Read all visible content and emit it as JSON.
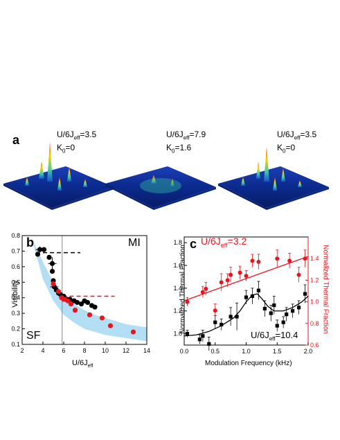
{
  "panel_a": {
    "label": "a",
    "surfaces": [
      {
        "param_main": "U/6J",
        "param_sub": "eff",
        "param_value": "=3.5",
        "k_main": "K",
        "k_sub": "0",
        "k_value": "=0"
      },
      {
        "param_main": "U/6J",
        "param_sub": "eff",
        "param_value": "=7.9",
        "k_main": "K",
        "k_sub": "0",
        "k_value": "=1.6"
      },
      {
        "param_main": "U/6J",
        "param_sub": "eff",
        "param_value": "=3.5",
        "k_main": "K",
        "k_sub": "0",
        "k_value": "=0"
      }
    ]
  },
  "panel_b": {
    "label": "b",
    "region_left": "SF",
    "region_right": "MI",
    "colors": {
      "black": "#000000",
      "red": "#e8141e",
      "band": "#b3dff5",
      "vline": "#888888"
    }
  },
  "panel_c": {
    "label": "c",
    "red_annotation": {
      "main": "U/6J",
      "sub": "eff",
      "value": "=3.2"
    },
    "black_annotation": {
      "main": "U/6J",
      "sub": "eff",
      "value": "=10.4"
    },
    "colors": {
      "black": "#000000",
      "red": "#e8141e"
    }
  },
  "chart_data": [
    {
      "type": "scatter",
      "xlabel_main": "U/6J",
      "xlabel_sub": "eff",
      "ylabel": "Visibility",
      "xlim": [
        2,
        14
      ],
      "ylim": [
        0.1,
        0.8
      ],
      "xticks": [
        "2",
        "4",
        "6",
        "8",
        "10",
        "12",
        "14"
      ],
      "yticks": [
        "0.1",
        "0.2",
        "0.3",
        "0.4",
        "0.5",
        "0.6",
        "0.7",
        "0.8"
      ],
      "series": [
        {
          "color": "black",
          "points": [
            [
              3.5,
              0.68
            ],
            [
              3.7,
              0.71
            ],
            [
              4.1,
              0.71
            ],
            [
              4.6,
              0.66
            ],
            [
              4.9,
              0.62
            ],
            [
              4.9,
              0.57
            ],
            [
              5.0,
              0.51
            ],
            [
              5.1,
              0.47
            ],
            [
              5.3,
              0.45
            ],
            [
              5.5,
              0.43
            ],
            [
              5.7,
              0.42
            ],
            [
              6.0,
              0.41
            ],
            [
              6.3,
              0.39
            ],
            [
              6.6,
              0.39
            ],
            [
              7.0,
              0.38
            ],
            [
              7.3,
              0.37
            ],
            [
              7.7,
              0.36
            ],
            [
              8.0,
              0.38
            ],
            [
              8.3,
              0.37
            ],
            [
              8.7,
              0.35
            ],
            [
              9.0,
              0.34
            ]
          ],
          "errorbars": [
            [
              3.7,
              0.71,
              0.02
            ],
            [
              4.9,
              0.62,
              0.04
            ],
            [
              5.1,
              0.47,
              0.03
            ]
          ]
        },
        {
          "color": "red",
          "points": [
            [
              5.0,
              0.49
            ],
            [
              5.5,
              0.44
            ],
            [
              5.8,
              0.4
            ],
            [
              6.0,
              0.39
            ],
            [
              6.1,
              0.39
            ],
            [
              6.4,
              0.38
            ],
            [
              6.7,
              0.36
            ],
            [
              7.1,
              0.32
            ],
            [
              8.5,
              0.29
            ],
            [
              9.7,
              0.27
            ],
            [
              10.5,
              0.22
            ],
            [
              12.7,
              0.18
            ]
          ]
        }
      ],
      "dashed_lines": [
        {
          "color": "black",
          "y": 0.69,
          "x": [
            4.0,
            7.6
          ]
        },
        {
          "color": "red",
          "y": 0.41,
          "x": [
            5.9,
            10.9
          ]
        }
      ],
      "vertical_line_x": 5.85,
      "band": {
        "upper": [
          [
            2.9,
            0.79
          ],
          [
            4,
            0.63
          ],
          [
            5,
            0.5
          ],
          [
            6,
            0.41
          ],
          [
            7,
            0.36
          ],
          [
            8,
            0.32
          ],
          [
            9,
            0.29
          ],
          [
            10,
            0.27
          ],
          [
            11,
            0.25
          ],
          [
            12,
            0.23
          ],
          [
            13,
            0.22
          ],
          [
            14,
            0.21
          ]
        ],
        "lower": [
          [
            2.9,
            0.79
          ],
          [
            4,
            0.52
          ],
          [
            5,
            0.38
          ],
          [
            6,
            0.29
          ],
          [
            7,
            0.24
          ],
          [
            8,
            0.2
          ],
          [
            9,
            0.18
          ],
          [
            10,
            0.16
          ],
          [
            11,
            0.15
          ],
          [
            12,
            0.14
          ],
          [
            13,
            0.13
          ],
          [
            14,
            0.12
          ]
        ]
      }
    },
    {
      "type": "scatter",
      "xlabel": "Modulation Frequency (kHz)",
      "ylabel_left": "Normalized Thermal Fraction",
      "ylabel_right": "Normalized Thermal Fraction",
      "xlim": [
        0,
        2.0
      ],
      "ylim_left": [
        0.9,
        1.85
      ],
      "ylim_right": [
        0.6,
        1.6
      ],
      "xticks": [
        "0.0",
        "0.5",
        "1.0",
        "1.5",
        "2.0"
      ],
      "yticks_left": [
        "1.0",
        "1.2",
        "1.4",
        "1.6",
        "1.8"
      ],
      "yticks_right": [
        "0.6",
        "0.8",
        "1.0",
        "1.2",
        "1.4"
      ],
      "series": [
        {
          "color": "black",
          "axis": "left",
          "points": [
            [
              0.05,
              1.0,
              0.03
            ],
            [
              0.25,
              0.95,
              0.04
            ],
            [
              0.3,
              0.98,
              0.05
            ],
            [
              0.4,
              0.91,
              0.06
            ],
            [
              0.5,
              1.1,
              0.06
            ],
            [
              0.6,
              1.08,
              0.05
            ],
            [
              0.75,
              1.15,
              0.08
            ],
            [
              0.85,
              1.15,
              0.12
            ],
            [
              1.0,
              1.32,
              0.06
            ],
            [
              1.1,
              1.33,
              0.07
            ],
            [
              1.2,
              1.38,
              0.08
            ],
            [
              1.3,
              1.22,
              0.07
            ],
            [
              1.4,
              1.18,
              0.07
            ],
            [
              1.45,
              1.25,
              0.08
            ],
            [
              1.5,
              1.07,
              0.05
            ],
            [
              1.6,
              1.1,
              0.05
            ],
            [
              1.65,
              1.17,
              0.06
            ],
            [
              1.75,
              1.2,
              0.06
            ],
            [
              1.85,
              1.23,
              0.06
            ],
            [
              1.95,
              1.35,
              0.08
            ]
          ],
          "fit": [
            [
              0,
              0.98
            ],
            [
              0.2,
              0.99
            ],
            [
              0.4,
              1.02
            ],
            [
              0.6,
              1.07
            ],
            [
              0.8,
              1.14
            ],
            [
              0.9,
              1.2
            ],
            [
              1.0,
              1.28
            ],
            [
              1.1,
              1.34
            ],
            [
              1.18,
              1.35
            ],
            [
              1.25,
              1.31
            ],
            [
              1.35,
              1.24
            ],
            [
              1.45,
              1.2
            ],
            [
              1.6,
              1.2
            ],
            [
              1.75,
              1.23
            ],
            [
              1.9,
              1.28
            ],
            [
              2.0,
              1.33
            ]
          ]
        },
        {
          "color": "red",
          "axis": "right",
          "points": [
            [
              0.05,
              1.0,
              0.04
            ],
            [
              0.3,
              1.09,
              0.05
            ],
            [
              0.35,
              1.12,
              0.06
            ],
            [
              0.5,
              0.92,
              0.06
            ],
            [
              0.6,
              1.18,
              0.08
            ],
            [
              0.7,
              1.2,
              0.06
            ],
            [
              0.75,
              1.25,
              0.07
            ],
            [
              0.9,
              1.27,
              0.06
            ],
            [
              1.0,
              1.24,
              0.05
            ],
            [
              1.1,
              1.38,
              0.06
            ],
            [
              1.2,
              1.37,
              0.07
            ],
            [
              1.5,
              1.4,
              0.08
            ],
            [
              1.7,
              1.38,
              0.07
            ],
            [
              1.85,
              1.25,
              0.07
            ],
            [
              1.95,
              1.4,
              0.08
            ]
          ],
          "fit": [
            [
              0,
              1.01
            ],
            [
              2.0,
              1.42
            ]
          ]
        }
      ]
    }
  ]
}
